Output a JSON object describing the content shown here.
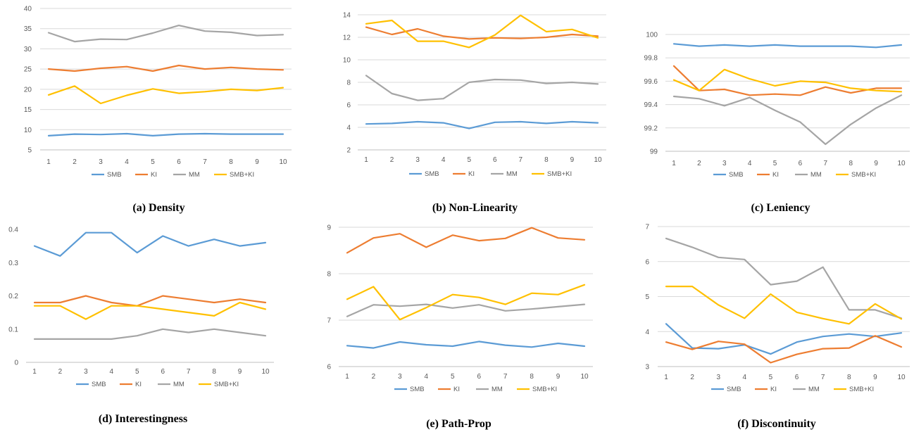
{
  "colors": {
    "SMB": "#5b9bd5",
    "KI": "#ed7d31",
    "MM": "#a5a5a5",
    "SMB+KI": "#ffc000"
  },
  "chart_data": [
    {
      "type": "line",
      "caption": "(a) Density",
      "categories": [
        "1",
        "2",
        "3",
        "4",
        "5",
        "6",
        "7",
        "8",
        "9",
        "10"
      ],
      "ylim": [
        5,
        40
      ],
      "yticks": [
        5,
        10,
        15,
        20,
        25,
        30,
        35,
        40
      ],
      "ytick_labels": [
        "5",
        "10",
        "15",
        "20",
        "25",
        "30",
        "35",
        "40"
      ],
      "grid": true,
      "legend": "bottom",
      "series": [
        {
          "name": "SMB",
          "color": "#5b9bd5",
          "values": [
            8.5,
            8.9,
            8.8,
            9.0,
            8.5,
            8.9,
            9.0,
            8.9,
            8.9,
            8.9
          ]
        },
        {
          "name": "KI",
          "color": "#ed7d31",
          "values": [
            25.0,
            24.5,
            25.2,
            25.6,
            24.5,
            25.9,
            25.0,
            25.4,
            25.0,
            24.8
          ]
        },
        {
          "name": "MM",
          "color": "#a5a5a5",
          "values": [
            34.0,
            31.8,
            32.4,
            32.3,
            33.9,
            35.8,
            34.4,
            34.1,
            33.3,
            33.5
          ]
        },
        {
          "name": "SMB+KI",
          "color": "#ffc000",
          "values": [
            18.6,
            20.8,
            16.5,
            18.5,
            20.1,
            19.0,
            19.4,
            20.0,
            19.7,
            20.4
          ]
        }
      ]
    },
    {
      "type": "line",
      "caption": "(b) Non-Linearity",
      "categories": [
        "1",
        "2",
        "3",
        "4",
        "5",
        "6",
        "7",
        "8",
        "9",
        "10"
      ],
      "ylim": [
        2,
        14
      ],
      "yticks": [
        2,
        4,
        6,
        8,
        10,
        12,
        14
      ],
      "ytick_labels": [
        "2",
        "4",
        "6",
        "8",
        "10",
        "12",
        "14"
      ],
      "grid": true,
      "legend": "bottom",
      "series": [
        {
          "name": "SMB",
          "color": "#5b9bd5",
          "values": [
            4.3,
            4.35,
            4.5,
            4.4,
            3.9,
            4.45,
            4.5,
            4.35,
            4.5,
            4.4
          ]
        },
        {
          "name": "KI",
          "color": "#ed7d31",
          "values": [
            12.9,
            12.25,
            12.75,
            12.1,
            11.85,
            11.95,
            11.9,
            12.0,
            12.25,
            12.1
          ]
        },
        {
          "name": "MM",
          "color": "#a5a5a5",
          "values": [
            8.6,
            7.0,
            6.4,
            6.55,
            8.0,
            8.25,
            8.2,
            7.9,
            8.0,
            7.85
          ]
        },
        {
          "name": "SMB+KI",
          "color": "#ffc000",
          "values": [
            13.2,
            13.5,
            11.65,
            11.65,
            11.1,
            12.2,
            13.95,
            12.5,
            12.7,
            11.95
          ]
        }
      ]
    },
    {
      "type": "line",
      "caption": "(c) Leniency",
      "categories": [
        "1",
        "2",
        "3",
        "4",
        "5",
        "6",
        "7",
        "8",
        "9",
        "10"
      ],
      "ylim": [
        99,
        100
      ],
      "yticks": [
        99,
        99.2,
        99.4,
        99.6,
        99.8,
        100
      ],
      "ytick_labels": [
        "99",
        "99.2",
        "99.4",
        "99.6",
        "99.8",
        "100"
      ],
      "grid": true,
      "legend": "bottom",
      "series": [
        {
          "name": "SMB",
          "color": "#5b9bd5",
          "values": [
            99.92,
            99.9,
            99.91,
            99.9,
            99.91,
            99.9,
            99.9,
            99.9,
            99.89,
            99.91
          ]
        },
        {
          "name": "KI",
          "color": "#ed7d31",
          "values": [
            99.73,
            99.52,
            99.53,
            99.48,
            99.49,
            99.48,
            99.55,
            99.5,
            99.54,
            99.54
          ]
        },
        {
          "name": "MM",
          "color": "#a5a5a5",
          "values": [
            99.47,
            99.45,
            99.39,
            99.46,
            99.35,
            99.25,
            99.06,
            99.23,
            99.37,
            99.48
          ]
        },
        {
          "name": "SMB+KI",
          "color": "#ffc000",
          "values": [
            99.61,
            99.52,
            99.7,
            99.62,
            99.56,
            99.6,
            99.59,
            99.54,
            99.52,
            99.51
          ]
        }
      ]
    },
    {
      "type": "line",
      "caption": "(d) Interestingness",
      "categories": [
        "1",
        "2",
        "3",
        "4",
        "5",
        "6",
        "7",
        "8",
        "9",
        "10"
      ],
      "ylim": [
        0,
        0.4
      ],
      "yticks": [
        0,
        0.1,
        0.2,
        0.3,
        0.4
      ],
      "ytick_labels": [
        "0",
        "0.1",
        "0.2",
        "0.3",
        "0.4"
      ],
      "grid": false,
      "legend": "bottom",
      "series": [
        {
          "name": "SMB",
          "color": "#5b9bd5",
          "values": [
            0.35,
            0.32,
            0.39,
            0.39,
            0.33,
            0.38,
            0.35,
            0.37,
            0.35,
            0.36
          ]
        },
        {
          "name": "KI",
          "color": "#ed7d31",
          "values": [
            0.18,
            0.18,
            0.2,
            0.18,
            0.17,
            0.2,
            0.19,
            0.18,
            0.19,
            0.18
          ]
        },
        {
          "name": "MM",
          "color": "#a5a5a5",
          "values": [
            0.07,
            0.07,
            0.07,
            0.07,
            0.08,
            0.1,
            0.09,
            0.1,
            0.09,
            0.08
          ]
        },
        {
          "name": "SMB+KI",
          "color": "#ffc000",
          "values": [
            0.17,
            0.17,
            0.13,
            0.17,
            0.17,
            0.16,
            0.15,
            0.14,
            0.18,
            0.16
          ]
        }
      ]
    },
    {
      "type": "line",
      "caption": "(e) Path-Prop",
      "categories": [
        "1",
        "2",
        "3",
        "4",
        "5",
        "6",
        "7",
        "8",
        "9",
        "10"
      ],
      "ylim": [
        6,
        9
      ],
      "yticks": [
        6,
        7,
        8,
        9
      ],
      "ytick_labels": [
        "6",
        "7",
        "8",
        "9"
      ],
      "grid": true,
      "legend": "bottom",
      "series": [
        {
          "name": "SMB",
          "color": "#5b9bd5",
          "values": [
            6.45,
            6.4,
            6.53,
            6.47,
            6.44,
            6.54,
            6.46,
            6.42,
            6.5,
            6.44
          ]
        },
        {
          "name": "KI",
          "color": "#ed7d31",
          "values": [
            8.45,
            8.77,
            8.86,
            8.57,
            8.83,
            8.71,
            8.76,
            8.99,
            8.77,
            8.73
          ]
        },
        {
          "name": "MM",
          "color": "#a5a5a5",
          "values": [
            7.08,
            7.33,
            7.3,
            7.34,
            7.26,
            7.33,
            7.2,
            7.24,
            7.29,
            7.34
          ]
        },
        {
          "name": "SMB+KI",
          "color": "#ffc000",
          "values": [
            7.45,
            7.72,
            7.01,
            7.27,
            7.55,
            7.49,
            7.34,
            7.58,
            7.55,
            7.76
          ]
        }
      ]
    },
    {
      "type": "line",
      "caption": "(f) Discontinuity",
      "categories": [
        "1",
        "2",
        "3",
        "4",
        "5",
        "6",
        "7",
        "8",
        "9",
        "10"
      ],
      "ylim": [
        3,
        7
      ],
      "yticks": [
        3,
        4,
        5,
        6,
        7
      ],
      "ytick_labels": [
        "3",
        "4",
        "5",
        "6",
        "7"
      ],
      "grid": true,
      "legend": "bottom",
      "series": [
        {
          "name": "SMB",
          "color": "#5b9bd5",
          "values": [
            4.22,
            3.53,
            3.51,
            3.62,
            3.36,
            3.7,
            3.86,
            3.93,
            3.86,
            3.96
          ]
        },
        {
          "name": "KI",
          "color": "#ed7d31",
          "values": [
            3.7,
            3.49,
            3.72,
            3.64,
            3.11,
            3.35,
            3.51,
            3.53,
            3.88,
            3.56
          ]
        },
        {
          "name": "MM",
          "color": "#a5a5a5",
          "values": [
            6.66,
            6.41,
            6.12,
            6.06,
            5.34,
            5.44,
            5.84,
            4.62,
            4.62,
            4.38
          ]
        },
        {
          "name": "SMB+KI",
          "color": "#ffc000",
          "values": [
            5.29,
            5.29,
            4.76,
            4.38,
            5.07,
            4.55,
            4.37,
            4.22,
            4.79,
            4.36
          ]
        }
      ]
    }
  ]
}
